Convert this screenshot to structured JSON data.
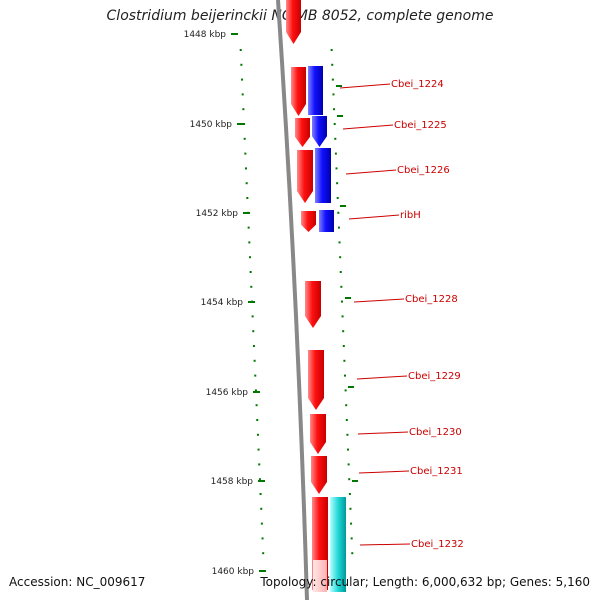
{
  "title": "Clostridium beijerinckii NCIMB 8052, complete genome",
  "footer": {
    "accession": "Accession: NC_009617",
    "summary": "Topology: circular; Length: 6,000,632 bp; Genes: 5,160"
  },
  "axis": {
    "ticks": [
      "1448 kbp",
      "1450 kbp",
      "1452 kbp",
      "1454 kbp",
      "1456 kbp",
      "1458 kbp",
      "1460 kbp"
    ]
  },
  "genes": [
    {
      "label": "Cbei_1224",
      "color": "#ff0000"
    },
    {
      "label": "Cbei_1225",
      "color": "#ff0000"
    },
    {
      "label": "Cbei_1226",
      "color": "#ff0000"
    },
    {
      "label": "ribH",
      "color": "#ff0000"
    },
    {
      "label": "Cbei_1228",
      "color": "#ff0000"
    },
    {
      "label": "Cbei_1229",
      "color": "#ff0000"
    },
    {
      "label": "Cbei_1230",
      "color": "#ff0000"
    },
    {
      "label": "Cbei_1231",
      "color": "#ff0000"
    },
    {
      "label": "Cbei_1232",
      "color": "#ff0000"
    }
  ],
  "colors": {
    "forward_strand": "#ff0000",
    "reverse_strand": "#0000ff",
    "rna": "#00cccc",
    "backbone": "#888888",
    "gc_marks": "#007700",
    "label": "#cc0000"
  }
}
